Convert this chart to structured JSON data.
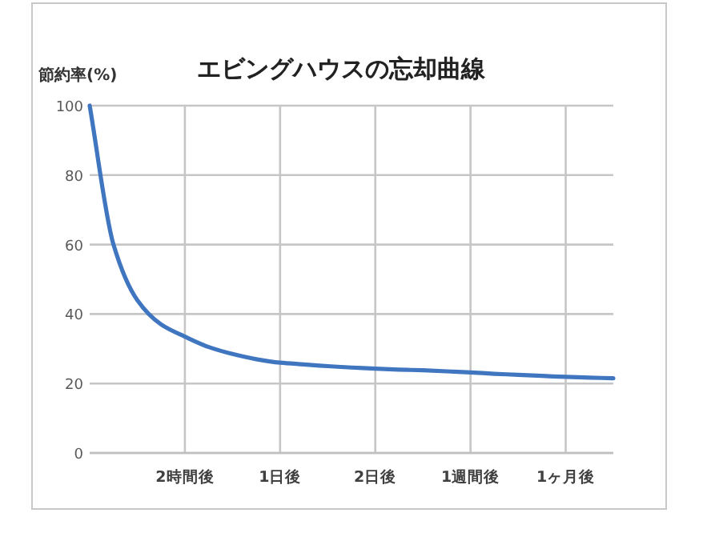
{
  "chart_data": {
    "type": "line",
    "title": "エビングハウスの忘却曲線",
    "ylabel": "節約率(%)",
    "categories": [
      null,
      null,
      null,
      null,
      "2時間後",
      null,
      null,
      null,
      "1日後",
      null,
      null,
      null,
      "2日後",
      null,
      null,
      null,
      "1週間後",
      null,
      null,
      null,
      "1ヶ月後",
      null,
      null
    ],
    "series": [
      {
        "color": "#3f76bf",
        "values": [
          100,
          60,
          44,
          37,
          33.5,
          30.5,
          28.5,
          27,
          26,
          25.5,
          25,
          24.6,
          24.3,
          24,
          23.8,
          23.5,
          23.2,
          22.8,
          22.5,
          22.2,
          21.9,
          21.7,
          21.5
        ]
      }
    ],
    "ylim": [
      0,
      100
    ],
    "yticks": [
      0,
      20,
      40,
      60,
      80,
      100
    ],
    "grid": true,
    "marker": "none",
    "line_style": "solid"
  }
}
